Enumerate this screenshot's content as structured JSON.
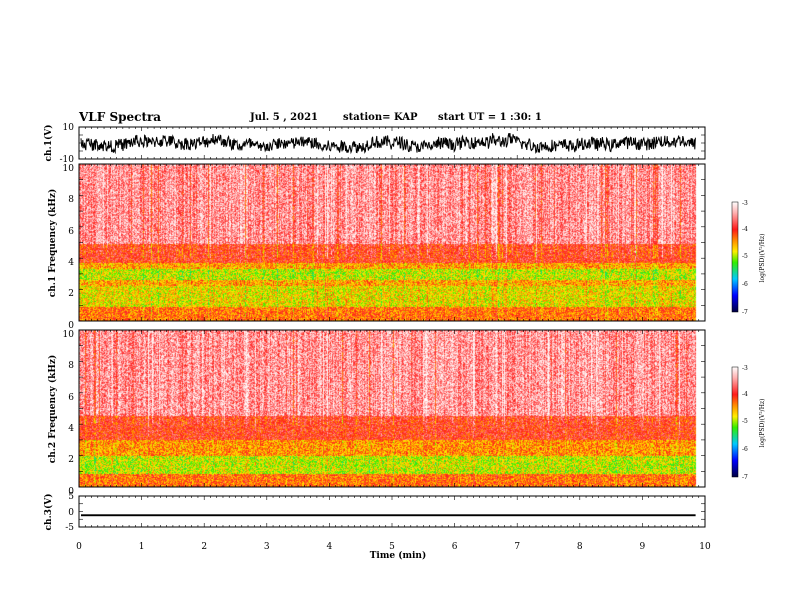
{
  "header": {
    "title": "VLF Spectra",
    "date": "Jul. 5 , 2021",
    "station": "station= KAP",
    "start": "start UT = 1 :30: 1"
  },
  "colors": {
    "white": "#ffffff",
    "pink": "#ffb0b0",
    "red": "#ff1a1a",
    "orange": "#ff8c00",
    "yellow": "#ffee00",
    "green": "#33ee00",
    "cyan": "#00c8ff",
    "blue": "#0000ff",
    "navy": "#000040",
    "black": "#000000"
  },
  "chart_data": [
    {
      "type": "line",
      "ylabel": "ch.1(V)",
      "xlim": [
        0,
        10
      ],
      "ylim": [
        -10,
        10
      ],
      "y_ticks": [
        "10",
        "-10"
      ],
      "signal_range_v": [
        -6,
        8
      ]
    },
    {
      "type": "heatmap",
      "ylabel": "ch.1 Frequency (kHz)",
      "xlim": [
        0,
        10
      ],
      "ylim": [
        0,
        10
      ],
      "y_ticks": [
        "10",
        "8",
        "6",
        "4",
        "2",
        "0"
      ],
      "data_end_min": 9.85,
      "colorbar": {
        "label": "log(PSD)(V²/Hz)",
        "range": [
          -7,
          -3
        ],
        "ticks": [
          "-3",
          "-4",
          "-5",
          "-6",
          "-7"
        ]
      },
      "bands_khz_log_psd": [
        {
          "from": 0,
          "to": 0.9,
          "level": -4.3
        },
        {
          "from": 0.9,
          "to": 2.2,
          "level": -4.75
        },
        {
          "from": 2.2,
          "to": 2.6,
          "level": -4.5
        },
        {
          "from": 2.6,
          "to": 3.3,
          "level": -4.9
        },
        {
          "from": 3.3,
          "to": 3.7,
          "level": -4.5
        },
        {
          "from": 3.7,
          "to": 4.9,
          "level": -4.0
        },
        {
          "from": 4.9,
          "to": 10,
          "level": -3.5
        }
      ]
    },
    {
      "type": "heatmap",
      "ylabel": "ch.2 Frequency (kHz)",
      "xlim": [
        0,
        10
      ],
      "ylim": [
        0,
        10
      ],
      "y_ticks": [
        "10",
        "8",
        "6",
        "4",
        "2",
        "0"
      ],
      "data_end_min": 9.85,
      "colorbar": {
        "label": "log(PSD)(V²/Hz)",
        "range": [
          -7,
          -3
        ],
        "ticks": [
          "-3",
          "-4",
          "-5",
          "-6",
          "-7"
        ]
      },
      "bands_khz_log_psd": [
        {
          "from": 0,
          "to": 0.8,
          "level": -4.3
        },
        {
          "from": 0.8,
          "to": 2.0,
          "level": -4.9
        },
        {
          "from": 2.0,
          "to": 3.0,
          "level": -4.45
        },
        {
          "from": 3.0,
          "to": 4.5,
          "level": -4.0
        },
        {
          "from": 4.5,
          "to": 10,
          "level": -3.5
        }
      ]
    },
    {
      "type": "line",
      "ylabel": "ch.3(V)",
      "xlabel": "Time (min)",
      "xlim": [
        0,
        10
      ],
      "ylim": [
        -5,
        5
      ],
      "y_ticks": [
        "5",
        "0",
        "-5"
      ],
      "x_ticks": [
        "0",
        "1",
        "2",
        "3",
        "4",
        "5",
        "6",
        "7",
        "8",
        "9",
        "10"
      ],
      "signal_level_v": -1.2,
      "signal_amplitude_v": 0.3
    }
  ]
}
